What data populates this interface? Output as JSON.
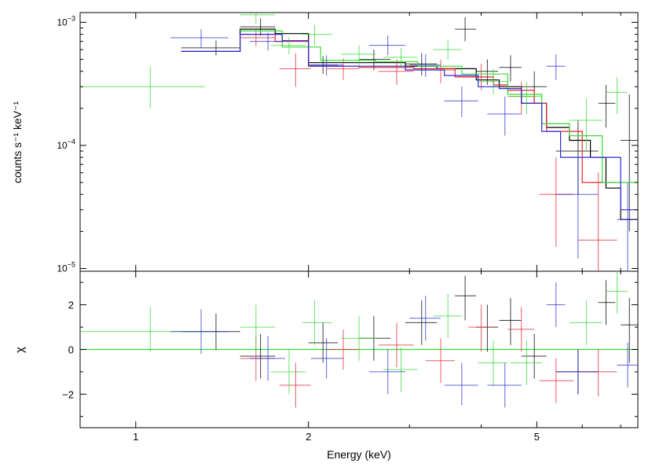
{
  "chart_data": {
    "type": "scatter",
    "xlabel": "Energy (keV)",
    "x_scale": "log",
    "xlim": [
      0.8,
      7.5
    ],
    "x_ticks": [
      {
        "v": 1,
        "label": "1"
      },
      {
        "v": 2,
        "label": "2"
      },
      {
        "v": 5,
        "label": "5"
      }
    ],
    "x_minor_ticks": [
      3,
      4,
      6,
      7
    ],
    "panels": {
      "top": {
        "ylabel": "counts s⁻¹ keV⁻¹",
        "y_scale": "log",
        "ylim": [
          9.5e-06,
          0.0012
        ],
        "y_ticks": [
          {
            "v": 0.001,
            "base": "10",
            "exp": "−3"
          },
          {
            "v": 0.0001,
            "base": "10",
            "exp": "−4"
          },
          {
            "v": 1e-05,
            "base": "10",
            "exp": "−5"
          }
        ]
      },
      "bottom": {
        "ylabel": "χ",
        "y_scale": "linear",
        "ylim": [
          -3.5,
          3.5
        ],
        "y_ticks": [
          {
            "v": 2,
            "label": "2"
          },
          {
            "v": 0,
            "label": "0"
          },
          {
            "v": -2,
            "label": "−2"
          }
        ],
        "zero_line_color": "#33dd33"
      }
    },
    "series": [
      {
        "name": "black",
        "color": "#000000",
        "data": [
          {
            "x": 1.38,
            "xlo": 1.2,
            "xhi": 1.52,
            "y": 0.00062,
            "ylo": 0.00054,
            "yhi": 0.00071,
            "chi": 0.8,
            "cl": 0.0,
            "ch": 1.6
          },
          {
            "x": 1.65,
            "xlo": 1.52,
            "xhi": 1.75,
            "y": 0.00092,
            "ylo": 0.00078,
            "yhi": 0.00108,
            "chi": -0.3,
            "cl": -1.3,
            "ch": 0.7
          },
          {
            "x": 2.12,
            "xlo": 2.0,
            "xhi": 2.25,
            "y": 0.00045,
            "ylo": 0.00038,
            "yhi": 0.00053,
            "chi": 0.3,
            "cl": -0.6,
            "ch": 1.2
          },
          {
            "x": 2.6,
            "xlo": 2.45,
            "xhi": 2.78,
            "y": 0.0005,
            "ylo": 0.00041,
            "yhi": 0.0006,
            "chi": 0.5,
            "cl": -0.5,
            "ch": 1.5
          },
          {
            "x": 3.15,
            "xlo": 2.95,
            "xhi": 3.35,
            "y": 0.00046,
            "ylo": 0.00037,
            "yhi": 0.00056,
            "chi": 1.2,
            "cl": 0.2,
            "ch": 2.2
          },
          {
            "x": 3.75,
            "xlo": 3.6,
            "xhi": 3.92,
            "y": 0.00088,
            "ylo": 0.0007,
            "yhi": 0.0011,
            "chi": 2.4,
            "cl": 1.3,
            "ch": 3.3
          },
          {
            "x": 4.1,
            "xlo": 3.92,
            "xhi": 4.28,
            "y": 0.0004,
            "ylo": 0.00031,
            "yhi": 0.0005,
            "chi": 1.0,
            "cl": -0.1,
            "ch": 2.0
          },
          {
            "x": 4.5,
            "xlo": 4.3,
            "xhi": 4.7,
            "y": 0.00043,
            "ylo": 0.00033,
            "yhi": 0.00054,
            "chi": 1.3,
            "cl": 0.2,
            "ch": 2.3
          },
          {
            "x": 4.95,
            "xlo": 4.7,
            "xhi": 5.2,
            "y": 0.0003,
            "ylo": 0.00022,
            "yhi": 0.0004,
            "chi": -0.3,
            "cl": -1.3,
            "ch": 0.7
          },
          {
            "x": 5.9,
            "xlo": 5.4,
            "xhi": 6.4,
            "y": 9e-05,
            "ylo": 4e-05,
            "yhi": 0.00016,
            "chi": -1.0,
            "cl": -2.0,
            "ch": 0.0
          },
          {
            "x": 6.6,
            "xlo": 6.4,
            "xhi": 6.85,
            "y": 0.00022,
            "ylo": 0.00014,
            "yhi": 0.00031,
            "chi": 2.1,
            "cl": 1.1,
            "ch": 3.1
          },
          {
            "x": 7.25,
            "xlo": 7.0,
            "xhi": 7.5,
            "y": 0.00011,
            "ylo": 2e-05,
            "yhi": 0.00026,
            "chi": 1.1,
            "cl": -0.6,
            "ch": 2.3
          }
        ],
        "model": [
          [
            1.2,
            0.00058
          ],
          [
            1.52,
            0.00088
          ],
          [
            1.75,
            0.00081
          ],
          [
            2.0,
            0.00047
          ],
          [
            2.45,
            0.00047
          ],
          [
            2.95,
            0.00044
          ],
          [
            3.35,
            0.00042
          ],
          [
            3.92,
            0.00034
          ],
          [
            4.3,
            0.0003
          ],
          [
            4.7,
            0.00022
          ],
          [
            5.2,
            0.00014
          ],
          [
            5.7,
            0.00011
          ],
          [
            6.2,
            8e-05
          ],
          [
            6.6,
            4.5e-05
          ],
          [
            7.0,
            2.5e-05
          ],
          [
            7.5,
            2.5e-05
          ]
        ]
      },
      {
        "name": "red",
        "color": "#e8242c",
        "data": [
          {
            "x": 1.62,
            "xlo": 1.52,
            "xhi": 1.75,
            "y": 0.00075,
            "ylo": 0.00064,
            "yhi": 0.00087,
            "chi": -0.4,
            "cl": -1.4,
            "ch": 0.6
          },
          {
            "x": 1.9,
            "xlo": 1.78,
            "xhi": 2.02,
            "y": 0.00042,
            "ylo": 0.0003,
            "yhi": 0.00056,
            "chi": -1.6,
            "cl": -2.6,
            "ch": -0.6
          },
          {
            "x": 2.3,
            "xlo": 2.15,
            "xhi": 2.45,
            "y": 0.00042,
            "ylo": 0.00034,
            "yhi": 0.00051,
            "chi": 0.0,
            "cl": -0.9,
            "ch": 0.9
          },
          {
            "x": 2.85,
            "xlo": 2.65,
            "xhi": 3.05,
            "y": 0.0004,
            "ylo": 0.00031,
            "yhi": 0.0005,
            "chi": 0.2,
            "cl": -0.8,
            "ch": 1.2
          },
          {
            "x": 3.4,
            "xlo": 3.2,
            "xhi": 3.6,
            "y": 0.00041,
            "ylo": 0.00032,
            "yhi": 0.0005,
            "chi": -0.5,
            "cl": -1.5,
            "ch": 0.5
          },
          {
            "x": 4.0,
            "xlo": 3.8,
            "xhi": 4.2,
            "y": 0.00036,
            "ylo": 0.00028,
            "yhi": 0.00046,
            "chi": 1.0,
            "cl": -0.1,
            "ch": 2.0
          },
          {
            "x": 4.7,
            "xlo": 4.45,
            "xhi": 4.95,
            "y": 0.00025,
            "ylo": 0.00018,
            "yhi": 0.00033,
            "chi": 0.9,
            "cl": -0.1,
            "ch": 1.9
          },
          {
            "x": 5.4,
            "xlo": 5.05,
            "xhi": 5.8,
            "y": 4e-05,
            "ylo": 1.5e-05,
            "yhi": 8e-05,
            "chi": -1.4,
            "cl": -2.4,
            "ch": -0.4
          },
          {
            "x": 6.4,
            "xlo": 5.9,
            "xhi": 6.9,
            "y": 1.7e-05,
            "ylo": 8e-06,
            "yhi": 6e-05,
            "chi": -1.0,
            "cl": -2.1,
            "ch": 0.0
          }
        ],
        "model": [
          [
            1.52,
            0.0008
          ],
          [
            1.75,
            0.0007
          ],
          [
            2.0,
            0.00044
          ],
          [
            2.45,
            0.00043
          ],
          [
            3.05,
            0.00042
          ],
          [
            3.6,
            0.00036
          ],
          [
            4.2,
            0.00031
          ],
          [
            4.45,
            0.00028
          ],
          [
            4.95,
            0.00022
          ],
          [
            5.2,
            0.00013
          ],
          [
            6.0,
            5e-05
          ],
          [
            7.0,
            5e-05
          ]
        ]
      },
      {
        "name": "green",
        "color": "#33dd33",
        "data": [
          {
            "x": 1.06,
            "xlo": 0.8,
            "xhi": 1.32,
            "y": 0.0003,
            "ylo": 0.0002,
            "yhi": 0.00044,
            "chi": 0.8,
            "cl": -0.1,
            "ch": 1.9
          },
          {
            "x": 1.62,
            "xlo": 1.52,
            "xhi": 1.75,
            "y": 0.00115,
            "ylo": 0.00098,
            "yhi": 0.00125,
            "chi": 1.0,
            "cl": -0.1,
            "ch": 2.0
          },
          {
            "x": 1.85,
            "xlo": 1.72,
            "xhi": 1.98,
            "y": 0.00065,
            "ylo": 0.00055,
            "yhi": 0.00076,
            "chi": -1.0,
            "cl": -2.0,
            "ch": 0.0
          },
          {
            "x": 2.05,
            "xlo": 1.95,
            "xhi": 2.2,
            "y": 0.0008,
            "ylo": 0.00065,
            "yhi": 0.00095,
            "chi": 1.2,
            "cl": 0.2,
            "ch": 2.2
          },
          {
            "x": 2.45,
            "xlo": 2.28,
            "xhi": 2.62,
            "y": 0.00055,
            "ylo": 0.00045,
            "yhi": 0.00065,
            "chi": 0.5,
            "cl": -0.5,
            "ch": 1.5
          },
          {
            "x": 2.9,
            "xlo": 2.7,
            "xhi": 3.1,
            "y": 0.00052,
            "ylo": 0.00043,
            "yhi": 0.00062,
            "chi": -0.9,
            "cl": -1.9,
            "ch": 0.1
          },
          {
            "x": 3.5,
            "xlo": 3.3,
            "xhi": 3.7,
            "y": 0.0006,
            "ylo": 0.0005,
            "yhi": 0.00072,
            "chi": 1.5,
            "cl": 0.5,
            "ch": 2.5
          },
          {
            "x": 4.2,
            "xlo": 3.95,
            "xhi": 4.45,
            "y": 0.00033,
            "ylo": 0.00026,
            "yhi": 0.00042,
            "chi": -0.6,
            "cl": -1.6,
            "ch": 0.4
          },
          {
            "x": 4.8,
            "xlo": 4.5,
            "xhi": 5.1,
            "y": 0.00025,
            "ylo": 0.00018,
            "yhi": 0.00033,
            "chi": -0.6,
            "cl": -1.6,
            "ch": 0.4
          },
          {
            "x": 6.1,
            "xlo": 5.7,
            "xhi": 6.5,
            "y": 0.00016,
            "ylo": 9e-05,
            "yhi": 0.00024,
            "chi": 1.2,
            "cl": 0.2,
            "ch": 2.2
          },
          {
            "x": 6.9,
            "xlo": 6.6,
            "xhi": 7.2,
            "y": 0.00027,
            "ylo": 0.00018,
            "yhi": 0.00036,
            "chi": 2.6,
            "cl": 1.6,
            "ch": 3.5
          }
        ],
        "model": [
          [
            1.52,
            0.00085
          ],
          [
            1.8,
            0.00063
          ],
          [
            2.1,
            0.00049
          ],
          [
            2.62,
            0.00048
          ],
          [
            3.1,
            0.00044
          ],
          [
            3.7,
            0.00038
          ],
          [
            4.45,
            0.00026
          ],
          [
            5.1,
            0.00015
          ],
          [
            5.7,
            0.00012
          ],
          [
            6.5,
            5e-05
          ],
          [
            7.5,
            5e-05
          ]
        ]
      },
      {
        "name": "blue",
        "color": "#2b2bd6",
        "data": [
          {
            "x": 1.3,
            "xlo": 1.15,
            "xhi": 1.45,
            "y": 0.00075,
            "ylo": 0.00062,
            "yhi": 0.00088,
            "chi": 0.8,
            "cl": -0.2,
            "ch": 1.8
          },
          {
            "x": 1.7,
            "xlo": 1.58,
            "xhi": 1.82,
            "y": 0.0007,
            "ylo": 0.00059,
            "yhi": 0.00082,
            "chi": -0.4,
            "cl": -1.4,
            "ch": 0.6
          },
          {
            "x": 2.15,
            "xlo": 2.02,
            "xhi": 2.3,
            "y": 0.00045,
            "ylo": 0.00037,
            "yhi": 0.00054,
            "chi": -0.4,
            "cl": -1.3,
            "ch": 0.5
          },
          {
            "x": 2.75,
            "xlo": 2.55,
            "xhi": 2.95,
            "y": 0.00065,
            "ylo": 0.00054,
            "yhi": 0.00078,
            "chi": -1.0,
            "cl": -2.0,
            "ch": 0.0
          },
          {
            "x": 3.2,
            "xlo": 3.0,
            "xhi": 3.4,
            "y": 0.00045,
            "ylo": 0.00036,
            "yhi": 0.00055,
            "chi": 1.4,
            "cl": 0.4,
            "ch": 2.4
          },
          {
            "x": 3.7,
            "xlo": 3.45,
            "xhi": 3.95,
            "y": 0.00023,
            "ylo": 0.00017,
            "yhi": 0.0003,
            "chi": -1.6,
            "cl": -2.5,
            "ch": -0.6
          },
          {
            "x": 4.4,
            "xlo": 4.1,
            "xhi": 4.7,
            "y": 0.00018,
            "ylo": 0.00012,
            "yhi": 0.00025,
            "chi": -1.6,
            "cl": -2.6,
            "ch": -0.6
          },
          {
            "x": 5.4,
            "xlo": 5.2,
            "xhi": 5.6,
            "y": 0.00044,
            "ylo": 0.00034,
            "yhi": 0.00055,
            "chi": 2.0,
            "cl": 1.0,
            "ch": 3.0
          },
          {
            "x": 5.9,
            "xlo": 5.4,
            "xhi": 6.4,
            "y": 4e-05,
            "ylo": 1.2e-05,
            "yhi": 8e-05,
            "chi": -1.0,
            "cl": -2.0,
            "ch": 0.0
          },
          {
            "x": 7.2,
            "xlo": 6.9,
            "xhi": 7.5,
            "y": 2.5e-05,
            "ylo": 8e-06,
            "yhi": 5e-05,
            "chi": -0.7,
            "cl": -1.7,
            "ch": 0.3
          }
        ],
        "model": [
          [
            1.2,
            0.00058
          ],
          [
            1.52,
            0.0008
          ],
          [
            1.8,
            0.00071
          ],
          [
            2.0,
            0.00044
          ],
          [
            2.55,
            0.00044
          ],
          [
            2.95,
            0.00041
          ],
          [
            3.45,
            0.00037
          ],
          [
            3.95,
            0.0003
          ],
          [
            4.3,
            0.00029
          ],
          [
            4.7,
            0.00022
          ],
          [
            5.1,
            0.00013
          ],
          [
            5.5,
            8e-05
          ],
          [
            6.4,
            8e-05
          ],
          [
            7.0,
            3e-05
          ],
          [
            7.5,
            3e-05
          ]
        ]
      }
    ]
  }
}
